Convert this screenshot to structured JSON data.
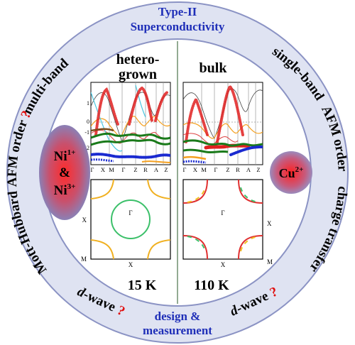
{
  "ring_labels": {
    "top_title_line1": "Type-II",
    "top_title_line2": "Superconductivity",
    "bottom_title_line1": "design &",
    "bottom_title_line2": "measurement",
    "left_multiband": "multi-band",
    "left_afm_order": "AFM order",
    "left_afm_question": "?",
    "left_mott_hubbard": "Mott-Hubbard",
    "left_dwave_d": "d",
    "left_dwave_rest": "-wave",
    "left_dwave_question": "?",
    "right_singleband": "single-band",
    "right_afm_order": "AFM order",
    "right_charge_transfer": "charge transfer",
    "right_dwave_d": "d",
    "right_dwave_rest": "-wave",
    "right_dwave_question": "?"
  },
  "left_panel": {
    "title_line1": "hetero-",
    "title_line2": "grown",
    "band_kpath": [
      "Γ",
      "X",
      "M",
      "Γ",
      "Z",
      "R",
      "A",
      "Z"
    ],
    "energy_ticks": [
      "1",
      "0",
      "-1",
      "-2",
      "-3"
    ],
    "fermi_surface_center": "Γ",
    "fermi_surface_corner_left": "X",
    "fermi_surface_corner_bottom_left": "M",
    "fermi_surface_bottom": "X",
    "temperature": "15 K",
    "ion_badge": {
      "ion1": "Ni",
      "ion1_sup": "1+",
      "amp": "&",
      "ion2": "Ni",
      "ion2_sup": "3+"
    }
  },
  "right_panel": {
    "title": "bulk",
    "band_kpath": [
      "Γ",
      "X",
      "M",
      "Γ",
      "Z",
      "R",
      "A",
      "Z"
    ],
    "fermi_surface_center": "Γ",
    "fermi_surface_corner_right": "X",
    "fermi_surface_bottom": "X",
    "fermi_surface_corner_bottom_right": "M",
    "temperature": "110 K",
    "ion_badge": {
      "ion": "Cu",
      "ion_sup": "2+"
    }
  },
  "colors": {
    "ring_fill": "#dfe3f2",
    "ring_border": "#8b93c4",
    "title_blue": "#1f2fb8",
    "question_red": "#e01010",
    "divider": "#6f8f6f"
  }
}
